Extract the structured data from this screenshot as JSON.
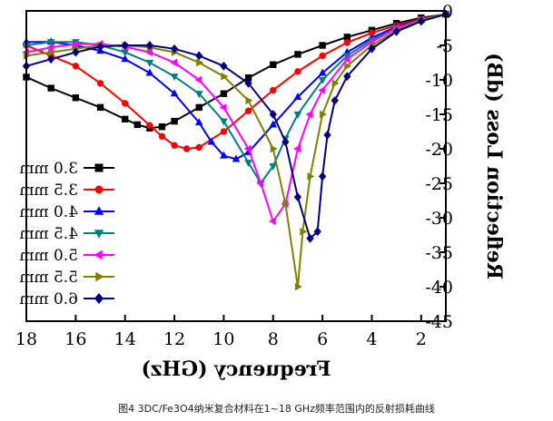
{
  "chart_data": {
    "type": "line",
    "xlabel": "Frequency (GHz)",
    "ylabel": "Reflection Loss (dB)",
    "xlim": [
      1,
      18
    ],
    "ylim": [
      -45,
      0
    ],
    "x_reversed": true,
    "mirrored": true,
    "xticks": [
      2,
      4,
      6,
      8,
      10,
      12,
      14,
      16,
      18
    ],
    "yticks": [
      0,
      -5,
      -10,
      -15,
      -20,
      -25,
      -30,
      -35,
      -40,
      -45
    ],
    "legend_position": "lower-right",
    "series": [
      {
        "name": "3.0 mm",
        "color": "#000000",
        "marker": "square",
        "x": [
          1,
          2,
          3,
          4,
          5,
          6,
          7,
          8,
          9,
          10,
          11,
          12,
          12.5,
          13,
          13.5,
          14,
          15,
          16,
          17,
          18
        ],
        "y": [
          -0.5,
          -1,
          -1.8,
          -2.8,
          -3.8,
          -5,
          -6.3,
          -7.8,
          -9.7,
          -12,
          -14,
          -16,
          -16.8,
          -17,
          -16.5,
          -15.7,
          -14,
          -12.6,
          -11.2,
          -9.6
        ]
      },
      {
        "name": "3.5 mm",
        "color": "#ff0000",
        "marker": "circle",
        "x": [
          1,
          2,
          3,
          4,
          5,
          6,
          7,
          8,
          9,
          10,
          11,
          11.5,
          12,
          12.5,
          13,
          14,
          15,
          16,
          17,
          18
        ],
        "y": [
          -0.5,
          -1.2,
          -2.1,
          -3.2,
          -4.6,
          -6.5,
          -8.8,
          -11.5,
          -14.5,
          -17.5,
          -19.8,
          -20,
          -19.5,
          -18.2,
          -16.6,
          -13.4,
          -10.5,
          -8,
          -6.5,
          -5
        ]
      },
      {
        "name": "4.0 mm",
        "color": "#0000ff",
        "marker": "triangle-up",
        "x": [
          1,
          2,
          3,
          4,
          5,
          6,
          7,
          8,
          9,
          9.5,
          10,
          10.5,
          11,
          12,
          13,
          14,
          15,
          16,
          17,
          18
        ],
        "y": [
          -0.5,
          -1.3,
          -2.3,
          -3.9,
          -6,
          -9,
          -12.5,
          -16.5,
          -20.5,
          -21.5,
          -21,
          -19,
          -16.2,
          -12,
          -9,
          -7,
          -5.8,
          -5,
          -4.5,
          -4.5
        ]
      },
      {
        "name": "4.5 mm",
        "color": "#008080",
        "marker": "triangle-down",
        "x": [
          1,
          2,
          3,
          4,
          5,
          6,
          7,
          7.5,
          8,
          8.5,
          9,
          10,
          11,
          12,
          13,
          14,
          15,
          16,
          17,
          18
        ],
        "y": [
          -0.5,
          -1.3,
          -2.5,
          -4.2,
          -6.5,
          -10,
          -15,
          -18.5,
          -22.5,
          -25,
          -22,
          -16,
          -12,
          -9.5,
          -7.5,
          -6,
          -5,
          -4.5,
          -4.5,
          -5
        ]
      },
      {
        "name": "5.0 mm",
        "color": "#ff00ff",
        "marker": "triangle-right",
        "x": [
          1,
          2,
          3,
          4,
          5,
          6,
          6.5,
          7,
          7.5,
          8,
          8.5,
          9,
          10,
          11,
          12,
          13,
          14,
          15,
          16,
          17,
          18
        ],
        "y": [
          -0.5,
          -1.3,
          -2.5,
          -4.5,
          -7,
          -11.5,
          -15,
          -20,
          -28,
          -30.5,
          -25,
          -20,
          -14,
          -10,
          -7.5,
          -6,
          -5.2,
          -4.8,
          -4.8,
          -5.3,
          -6
        ]
      },
      {
        "name": "5.5 mm",
        "color": "#808000",
        "marker": "triangle-left",
        "x": [
          1,
          2,
          3,
          4,
          5,
          5.5,
          6,
          6.5,
          6.8,
          7,
          7.5,
          8,
          9,
          10,
          11,
          12,
          13,
          14,
          15,
          16,
          17,
          18
        ],
        "y": [
          -0.5,
          -1.3,
          -2.8,
          -5,
          -8,
          -10.5,
          -15,
          -24,
          -32,
          -40,
          -28,
          -20,
          -13,
          -9.5,
          -7.5,
          -6,
          -5.3,
          -5,
          -5,
          -5.5,
          -6,
          -6.5
        ]
      },
      {
        "name": "6.0 mm",
        "color": "#000080",
        "marker": "diamond",
        "x": [
          1,
          2,
          3,
          4,
          5,
          5.5,
          5.8,
          6,
          6.2,
          6.5,
          7,
          7.5,
          8,
          9,
          10,
          11,
          12,
          13,
          14,
          15,
          16,
          17,
          18
        ],
        "y": [
          -0.5,
          -1.5,
          -3,
          -5.5,
          -9.5,
          -13,
          -18,
          -24,
          -32,
          -33,
          -27,
          -19,
          -15,
          -10.5,
          -8,
          -6.5,
          -5.5,
          -5,
          -5,
          -5.2,
          -6,
          -7,
          -8
        ]
      }
    ]
  },
  "caption": "图4 3DC/Fe3O4纳米复合材料在1~18 GHz频率范围内的反射损耗曲线"
}
